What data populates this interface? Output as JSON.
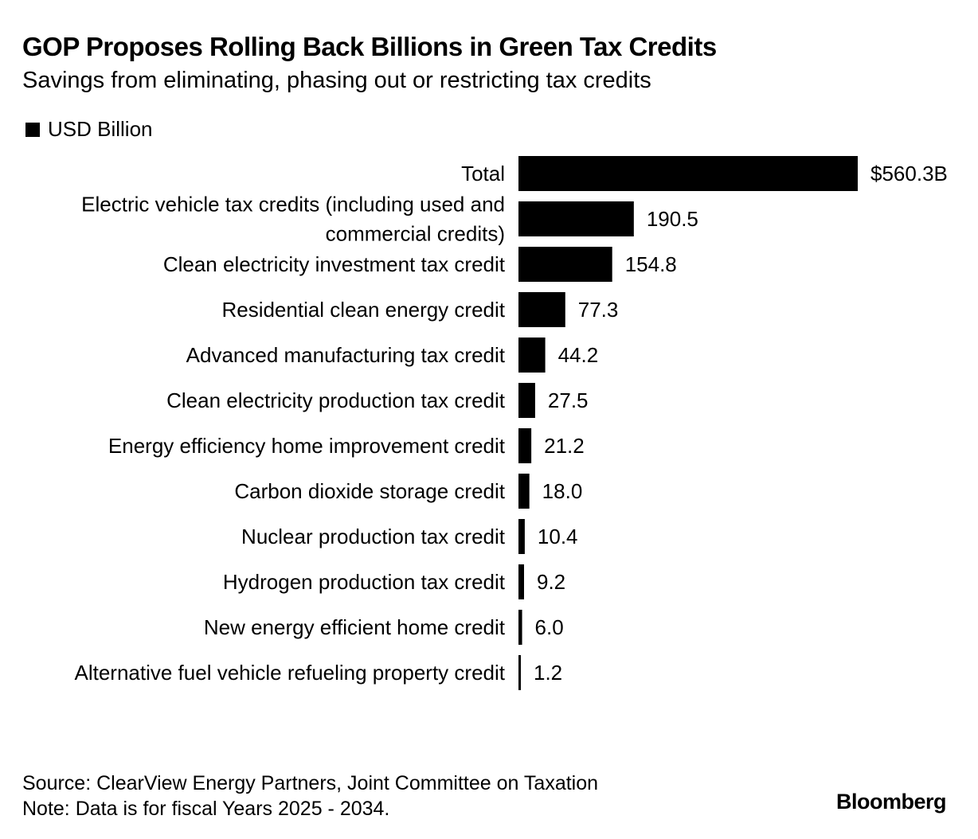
{
  "header": {
    "title": "GOP Proposes Rolling Back Billions in Green Tax Credits",
    "subtitle": "Savings from eliminating, phasing out or restricting tax credits"
  },
  "legend": {
    "label": "USD Billion",
    "color": "#000000"
  },
  "chart_data": {
    "type": "bar",
    "orientation": "horizontal",
    "categories": [
      "Total",
      "Electric vehicle tax credits (including used and commercial credits)",
      "Clean electricity investment tax credit",
      "Residential clean energy credit",
      "Advanced manufacturing tax credit",
      "Clean electricity production tax credit",
      "Energy efficiency home improvement credit",
      "Carbon dioxide storage credit",
      "Nuclear production tax credit",
      "Hydrogen production tax credit",
      "New energy efficient home credit",
      "Alternative fuel vehicle refueling property credit"
    ],
    "category_lines": [
      [
        "Total"
      ],
      [
        "Electric vehicle tax credits (including used and",
        "commercial credits)"
      ],
      [
        "Clean electricity investment tax credit"
      ],
      [
        "Residential clean energy credit"
      ],
      [
        "Advanced manufacturing tax credit"
      ],
      [
        "Clean electricity production tax credit"
      ],
      [
        "Energy efficiency home improvement credit"
      ],
      [
        "Carbon dioxide storage credit"
      ],
      [
        "Nuclear production tax credit"
      ],
      [
        "Hydrogen production tax credit"
      ],
      [
        "New energy efficient home credit"
      ],
      [
        "Alternative fuel vehicle refueling property credit"
      ]
    ],
    "series": [
      {
        "name": "USD Billion",
        "values": [
          560.3,
          190.5,
          154.8,
          77.3,
          44.2,
          27.5,
          21.2,
          18.0,
          10.4,
          9.2,
          6.0,
          1.2
        ]
      }
    ],
    "value_labels": [
      "$560.3B",
      "190.5",
      "154.8",
      "77.3",
      "44.2",
      "27.5",
      "21.2",
      "18.0",
      "10.4",
      "9.2",
      "6.0",
      "1.2"
    ],
    "xlim": [
      0,
      560.3
    ],
    "grid": false,
    "bar_color": "#000000"
  },
  "footer": {
    "source": "Source: ClearView Energy Partners, Joint Committee on Taxation",
    "note": "Note: Data is for fiscal Years 2025 - 2034.",
    "brand": "Bloomberg"
  }
}
